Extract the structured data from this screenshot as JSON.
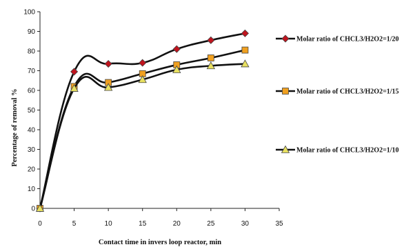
{
  "chart_data": {
    "type": "line",
    "title": "",
    "xlabel": "Contact  time in invers loop reactor, min",
    "ylabel": "Percentage of removal  %",
    "xlim": [
      0,
      35
    ],
    "ylim": [
      0,
      100
    ],
    "xticks": [
      0,
      5,
      10,
      15,
      20,
      25,
      30,
      35
    ],
    "yticks": [
      0,
      10,
      20,
      30,
      40,
      50,
      60,
      70,
      80,
      90,
      100
    ],
    "grid": false,
    "legend_position": "right",
    "x": [
      0,
      5,
      10,
      15,
      20,
      25,
      30
    ],
    "series": [
      {
        "name": "Molar ratio of CHCL3/H2O2=1/20",
        "values": [
          0,
          69.5,
          73.5,
          74,
          81,
          85.5,
          89
        ],
        "color": "#c0141e",
        "marker": "diamond"
      },
      {
        "name": "Molar ratio of CHCL3/H2O2=1/15",
        "values": [
          0,
          62,
          64,
          68.5,
          73,
          76.5,
          80.5
        ],
        "color": "#f0a020",
        "marker": "square"
      },
      {
        "name": "Molar ratio of CHCL3/H2O2=1/10",
        "values": [
          0,
          61,
          61.5,
          65.5,
          70.5,
          72.5,
          73.5
        ],
        "color": "#e8e060",
        "marker": "triangle"
      }
    ]
  }
}
